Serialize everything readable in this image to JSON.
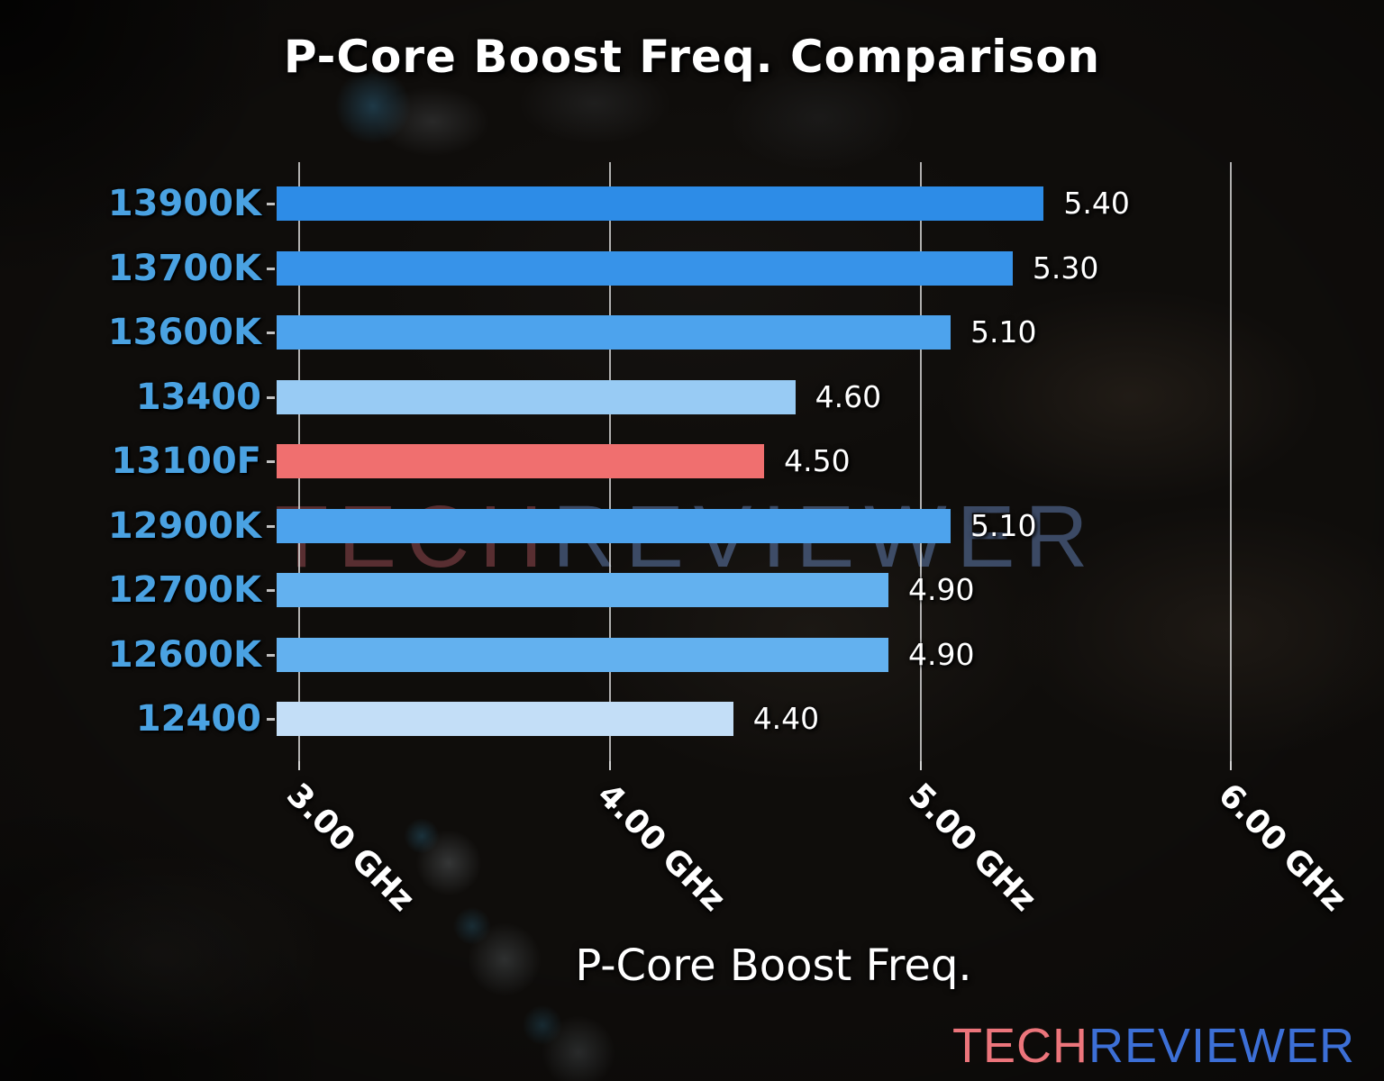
{
  "title": "P-Core Boost Freq. Comparison",
  "watermark": {
    "tech": "TECH",
    "reviewer": "REVIEWER"
  },
  "logo": {
    "tech": "TECH",
    "reviewer": "REVIEWER"
  },
  "colors": {
    "category_label": "#4aa2e2",
    "value_label": "#ffffff",
    "gridline": "#d8d8d8",
    "highlight_bar": "#f06f6f",
    "logo_tech": "#ec757b",
    "logo_reviewer": "#3c6fd6",
    "watermark_tech": "#6b3c40",
    "watermark_reviewer": "#4d5f7d"
  },
  "chart_data": {
    "type": "bar",
    "orientation": "horizontal",
    "title": "P-Core Boost Freq. Comparison",
    "xlabel": "P-Core Boost Freq.",
    "ylabel": "",
    "categories": [
      "13900K",
      "13700K",
      "13600K",
      "13400",
      "13100F",
      "12900K",
      "12700K",
      "12600K",
      "12400"
    ],
    "values": [
      5.4,
      5.3,
      5.1,
      4.6,
      4.5,
      5.1,
      4.9,
      4.9,
      4.4
    ],
    "value_labels": [
      "5.40",
      "5.30",
      "5.10",
      "4.60",
      "4.50",
      "5.10",
      "4.90",
      "4.90",
      "4.40"
    ],
    "unit": "GHz",
    "bar_colors": [
      "#2d8ce7",
      "#3793e9",
      "#4da3ed",
      "#98cbf4",
      "#f06f6f",
      "#4da3ed",
      "#63b1ef",
      "#63b1ef",
      "#c3def7"
    ],
    "highlighted_category": "13100F",
    "xlim": [
      2.93,
      6.13
    ],
    "xticks": [
      3.0,
      4.0,
      5.0,
      6.0
    ],
    "xtick_labels": [
      "3.00 GHz",
      "4.00 GHz",
      "5.00 GHz",
      "6.00 GHz"
    ],
    "grid": true,
    "legend_position": "none"
  }
}
